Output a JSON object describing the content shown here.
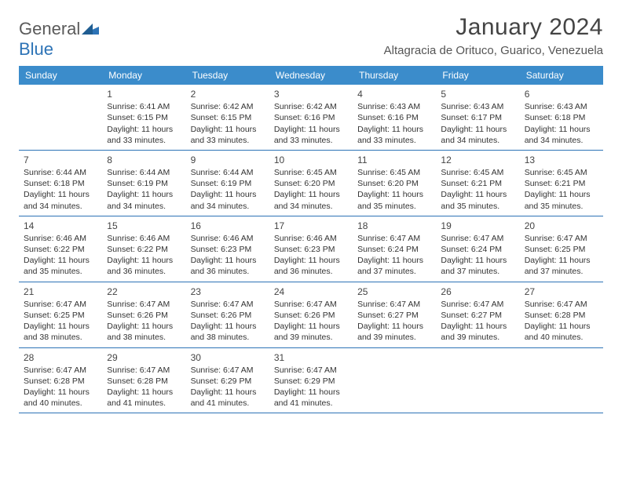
{
  "brand": {
    "general": "General",
    "blue": "Blue"
  },
  "title": "January 2024",
  "location": "Altagracia de Orituco, Guarico, Venezuela",
  "colors": {
    "header_bg": "#3b8ccb",
    "header_text": "#ffffff",
    "rule": "#2d73b6",
    "text": "#333333",
    "title_text": "#444444",
    "logo_gray": "#5a5a5a",
    "logo_blue": "#2d73b6",
    "background": "#ffffff"
  },
  "day_headers": [
    "Sunday",
    "Monday",
    "Tuesday",
    "Wednesday",
    "Thursday",
    "Friday",
    "Saturday"
  ],
  "weeks": [
    [
      null,
      {
        "n": "1",
        "sr": "Sunrise: 6:41 AM",
        "ss": "Sunset: 6:15 PM",
        "dl1": "Daylight: 11 hours",
        "dl2": "and 33 minutes."
      },
      {
        "n": "2",
        "sr": "Sunrise: 6:42 AM",
        "ss": "Sunset: 6:15 PM",
        "dl1": "Daylight: 11 hours",
        "dl2": "and 33 minutes."
      },
      {
        "n": "3",
        "sr": "Sunrise: 6:42 AM",
        "ss": "Sunset: 6:16 PM",
        "dl1": "Daylight: 11 hours",
        "dl2": "and 33 minutes."
      },
      {
        "n": "4",
        "sr": "Sunrise: 6:43 AM",
        "ss": "Sunset: 6:16 PM",
        "dl1": "Daylight: 11 hours",
        "dl2": "and 33 minutes."
      },
      {
        "n": "5",
        "sr": "Sunrise: 6:43 AM",
        "ss": "Sunset: 6:17 PM",
        "dl1": "Daylight: 11 hours",
        "dl2": "and 34 minutes."
      },
      {
        "n": "6",
        "sr": "Sunrise: 6:43 AM",
        "ss": "Sunset: 6:18 PM",
        "dl1": "Daylight: 11 hours",
        "dl2": "and 34 minutes."
      }
    ],
    [
      {
        "n": "7",
        "sr": "Sunrise: 6:44 AM",
        "ss": "Sunset: 6:18 PM",
        "dl1": "Daylight: 11 hours",
        "dl2": "and 34 minutes."
      },
      {
        "n": "8",
        "sr": "Sunrise: 6:44 AM",
        "ss": "Sunset: 6:19 PM",
        "dl1": "Daylight: 11 hours",
        "dl2": "and 34 minutes."
      },
      {
        "n": "9",
        "sr": "Sunrise: 6:44 AM",
        "ss": "Sunset: 6:19 PM",
        "dl1": "Daylight: 11 hours",
        "dl2": "and 34 minutes."
      },
      {
        "n": "10",
        "sr": "Sunrise: 6:45 AM",
        "ss": "Sunset: 6:20 PM",
        "dl1": "Daylight: 11 hours",
        "dl2": "and 34 minutes."
      },
      {
        "n": "11",
        "sr": "Sunrise: 6:45 AM",
        "ss": "Sunset: 6:20 PM",
        "dl1": "Daylight: 11 hours",
        "dl2": "and 35 minutes."
      },
      {
        "n": "12",
        "sr": "Sunrise: 6:45 AM",
        "ss": "Sunset: 6:21 PM",
        "dl1": "Daylight: 11 hours",
        "dl2": "and 35 minutes."
      },
      {
        "n": "13",
        "sr": "Sunrise: 6:45 AM",
        "ss": "Sunset: 6:21 PM",
        "dl1": "Daylight: 11 hours",
        "dl2": "and 35 minutes."
      }
    ],
    [
      {
        "n": "14",
        "sr": "Sunrise: 6:46 AM",
        "ss": "Sunset: 6:22 PM",
        "dl1": "Daylight: 11 hours",
        "dl2": "and 35 minutes."
      },
      {
        "n": "15",
        "sr": "Sunrise: 6:46 AM",
        "ss": "Sunset: 6:22 PM",
        "dl1": "Daylight: 11 hours",
        "dl2": "and 36 minutes."
      },
      {
        "n": "16",
        "sr": "Sunrise: 6:46 AM",
        "ss": "Sunset: 6:23 PM",
        "dl1": "Daylight: 11 hours",
        "dl2": "and 36 minutes."
      },
      {
        "n": "17",
        "sr": "Sunrise: 6:46 AM",
        "ss": "Sunset: 6:23 PM",
        "dl1": "Daylight: 11 hours",
        "dl2": "and 36 minutes."
      },
      {
        "n": "18",
        "sr": "Sunrise: 6:47 AM",
        "ss": "Sunset: 6:24 PM",
        "dl1": "Daylight: 11 hours",
        "dl2": "and 37 minutes."
      },
      {
        "n": "19",
        "sr": "Sunrise: 6:47 AM",
        "ss": "Sunset: 6:24 PM",
        "dl1": "Daylight: 11 hours",
        "dl2": "and 37 minutes."
      },
      {
        "n": "20",
        "sr": "Sunrise: 6:47 AM",
        "ss": "Sunset: 6:25 PM",
        "dl1": "Daylight: 11 hours",
        "dl2": "and 37 minutes."
      }
    ],
    [
      {
        "n": "21",
        "sr": "Sunrise: 6:47 AM",
        "ss": "Sunset: 6:25 PM",
        "dl1": "Daylight: 11 hours",
        "dl2": "and 38 minutes."
      },
      {
        "n": "22",
        "sr": "Sunrise: 6:47 AM",
        "ss": "Sunset: 6:26 PM",
        "dl1": "Daylight: 11 hours",
        "dl2": "and 38 minutes."
      },
      {
        "n": "23",
        "sr": "Sunrise: 6:47 AM",
        "ss": "Sunset: 6:26 PM",
        "dl1": "Daylight: 11 hours",
        "dl2": "and 38 minutes."
      },
      {
        "n": "24",
        "sr": "Sunrise: 6:47 AM",
        "ss": "Sunset: 6:26 PM",
        "dl1": "Daylight: 11 hours",
        "dl2": "and 39 minutes."
      },
      {
        "n": "25",
        "sr": "Sunrise: 6:47 AM",
        "ss": "Sunset: 6:27 PM",
        "dl1": "Daylight: 11 hours",
        "dl2": "and 39 minutes."
      },
      {
        "n": "26",
        "sr": "Sunrise: 6:47 AM",
        "ss": "Sunset: 6:27 PM",
        "dl1": "Daylight: 11 hours",
        "dl2": "and 39 minutes."
      },
      {
        "n": "27",
        "sr": "Sunrise: 6:47 AM",
        "ss": "Sunset: 6:28 PM",
        "dl1": "Daylight: 11 hours",
        "dl2": "and 40 minutes."
      }
    ],
    [
      {
        "n": "28",
        "sr": "Sunrise: 6:47 AM",
        "ss": "Sunset: 6:28 PM",
        "dl1": "Daylight: 11 hours",
        "dl2": "and 40 minutes."
      },
      {
        "n": "29",
        "sr": "Sunrise: 6:47 AM",
        "ss": "Sunset: 6:28 PM",
        "dl1": "Daylight: 11 hours",
        "dl2": "and 41 minutes."
      },
      {
        "n": "30",
        "sr": "Sunrise: 6:47 AM",
        "ss": "Sunset: 6:29 PM",
        "dl1": "Daylight: 11 hours",
        "dl2": "and 41 minutes."
      },
      {
        "n": "31",
        "sr": "Sunrise: 6:47 AM",
        "ss": "Sunset: 6:29 PM",
        "dl1": "Daylight: 11 hours",
        "dl2": "and 41 minutes."
      },
      null,
      null,
      null
    ]
  ]
}
